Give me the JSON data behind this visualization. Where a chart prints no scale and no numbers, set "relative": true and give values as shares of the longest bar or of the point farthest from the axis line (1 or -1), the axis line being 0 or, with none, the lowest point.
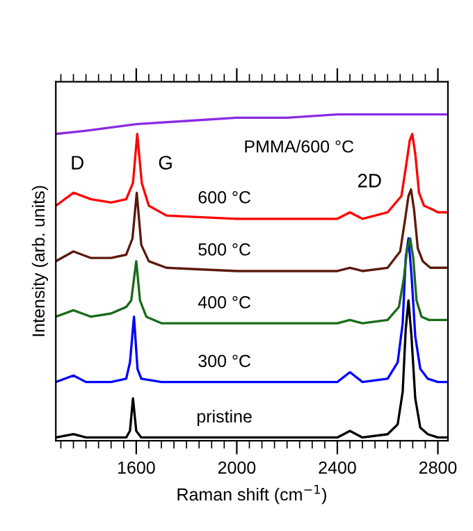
{
  "chart_data": {
    "type": "line",
    "relative": true,
    "xlabel": "Raman shift (cm$^{−1}$)",
    "ylabel": "Intensity (arb. units)",
    "xlim": [
      1280,
      2840
    ],
    "xticks": [
      1600,
      2000,
      2400,
      2800
    ],
    "tick_labels": "x",
    "grid": false,
    "legend": false,
    "marker": "none",
    "line_style": "solid",
    "annotations": [
      "D",
      "G",
      "2D"
    ],
    "series": [
      {
        "name": "pristine",
        "color": "#000000",
        "x": [
          1280,
          1350,
          1400,
          1500,
          1560,
          1575,
          1587,
          1600,
          1620,
          1700,
          2000,
          2400,
          2450,
          2500,
          2600,
          2640,
          2660,
          2672,
          2683,
          2695,
          2710,
          2730,
          2760,
          2800,
          2835
        ],
        "values": [
          0.01,
          0.02,
          0.01,
          0.01,
          0.01,
          0.03,
          0.13,
          0.03,
          0.01,
          0.01,
          0.01,
          0.01,
          0.03,
          0.01,
          0.02,
          0.05,
          0.15,
          0.34,
          0.43,
          0.32,
          0.13,
          0.04,
          0.02,
          0.01,
          0.01
        ]
      },
      {
        "name": "300 °C",
        "color": "#0000ff",
        "x": [
          1280,
          1350,
          1400,
          1500,
          1560,
          1575,
          1591,
          1605,
          1620,
          1700,
          2000,
          2400,
          2450,
          2500,
          2600,
          2640,
          2660,
          2672,
          2683,
          2695,
          2710,
          2730,
          2760,
          2800,
          2835
        ],
        "values": [
          0.18,
          0.2,
          0.18,
          0.18,
          0.19,
          0.24,
          0.38,
          0.22,
          0.19,
          0.18,
          0.18,
          0.18,
          0.21,
          0.18,
          0.19,
          0.24,
          0.36,
          0.56,
          0.62,
          0.51,
          0.32,
          0.22,
          0.19,
          0.18,
          0.18
        ]
      },
      {
        "name": "400 °C",
        "color": "#1a6b1a",
        "x": [
          1280,
          1350,
          1420,
          1500,
          1560,
          1580,
          1600,
          1615,
          1640,
          1700,
          2000,
          2400,
          2450,
          2500,
          2600,
          2645,
          2665,
          2678,
          2690,
          2702,
          2715,
          2735,
          2765,
          2800,
          2835
        ],
        "values": [
          0.38,
          0.4,
          0.38,
          0.39,
          0.41,
          0.43,
          0.55,
          0.43,
          0.38,
          0.36,
          0.36,
          0.36,
          0.37,
          0.36,
          0.37,
          0.41,
          0.5,
          0.59,
          0.62,
          0.56,
          0.43,
          0.38,
          0.37,
          0.37,
          0.37
        ]
      },
      {
        "name": "500 °C",
        "color": "#5c1a0e",
        "x": [
          1280,
          1350,
          1420,
          1500,
          1560,
          1585,
          1602,
          1620,
          1650,
          1720,
          2000,
          2400,
          2450,
          2500,
          2600,
          2650,
          2670,
          2683,
          2693,
          2705,
          2720,
          2740,
          2770,
          2800,
          2835
        ],
        "values": [
          0.55,
          0.58,
          0.56,
          0.56,
          0.57,
          0.62,
          0.76,
          0.6,
          0.55,
          0.53,
          0.52,
          0.52,
          0.53,
          0.52,
          0.53,
          0.58,
          0.68,
          0.75,
          0.77,
          0.71,
          0.59,
          0.55,
          0.53,
          0.53,
          0.53
        ]
      },
      {
        "name": "600 °C",
        "color": "#ff0000",
        "x": [
          1280,
          1350,
          1420,
          1500,
          1560,
          1587,
          1604,
          1622,
          1650,
          1720,
          2000,
          2400,
          2450,
          2500,
          2600,
          2655,
          2675,
          2688,
          2698,
          2710,
          2725,
          2745,
          2775,
          2800,
          2835
        ],
        "values": [
          0.72,
          0.76,
          0.74,
          0.73,
          0.74,
          0.79,
          0.94,
          0.79,
          0.72,
          0.69,
          0.68,
          0.68,
          0.7,
          0.68,
          0.7,
          0.75,
          0.85,
          0.92,
          0.94,
          0.88,
          0.76,
          0.72,
          0.71,
          0.7,
          0.7
        ]
      },
      {
        "name": "PMMA/600 °C",
        "color": "#8a2be2",
        "x": [
          1280,
          1400,
          1600,
          1800,
          2000,
          2200,
          2400,
          2600,
          2835
        ],
        "values": [
          0.94,
          0.95,
          0.97,
          0.98,
          0.99,
          0.99,
          1.0,
          1.0,
          1.0
        ]
      }
    ]
  }
}
